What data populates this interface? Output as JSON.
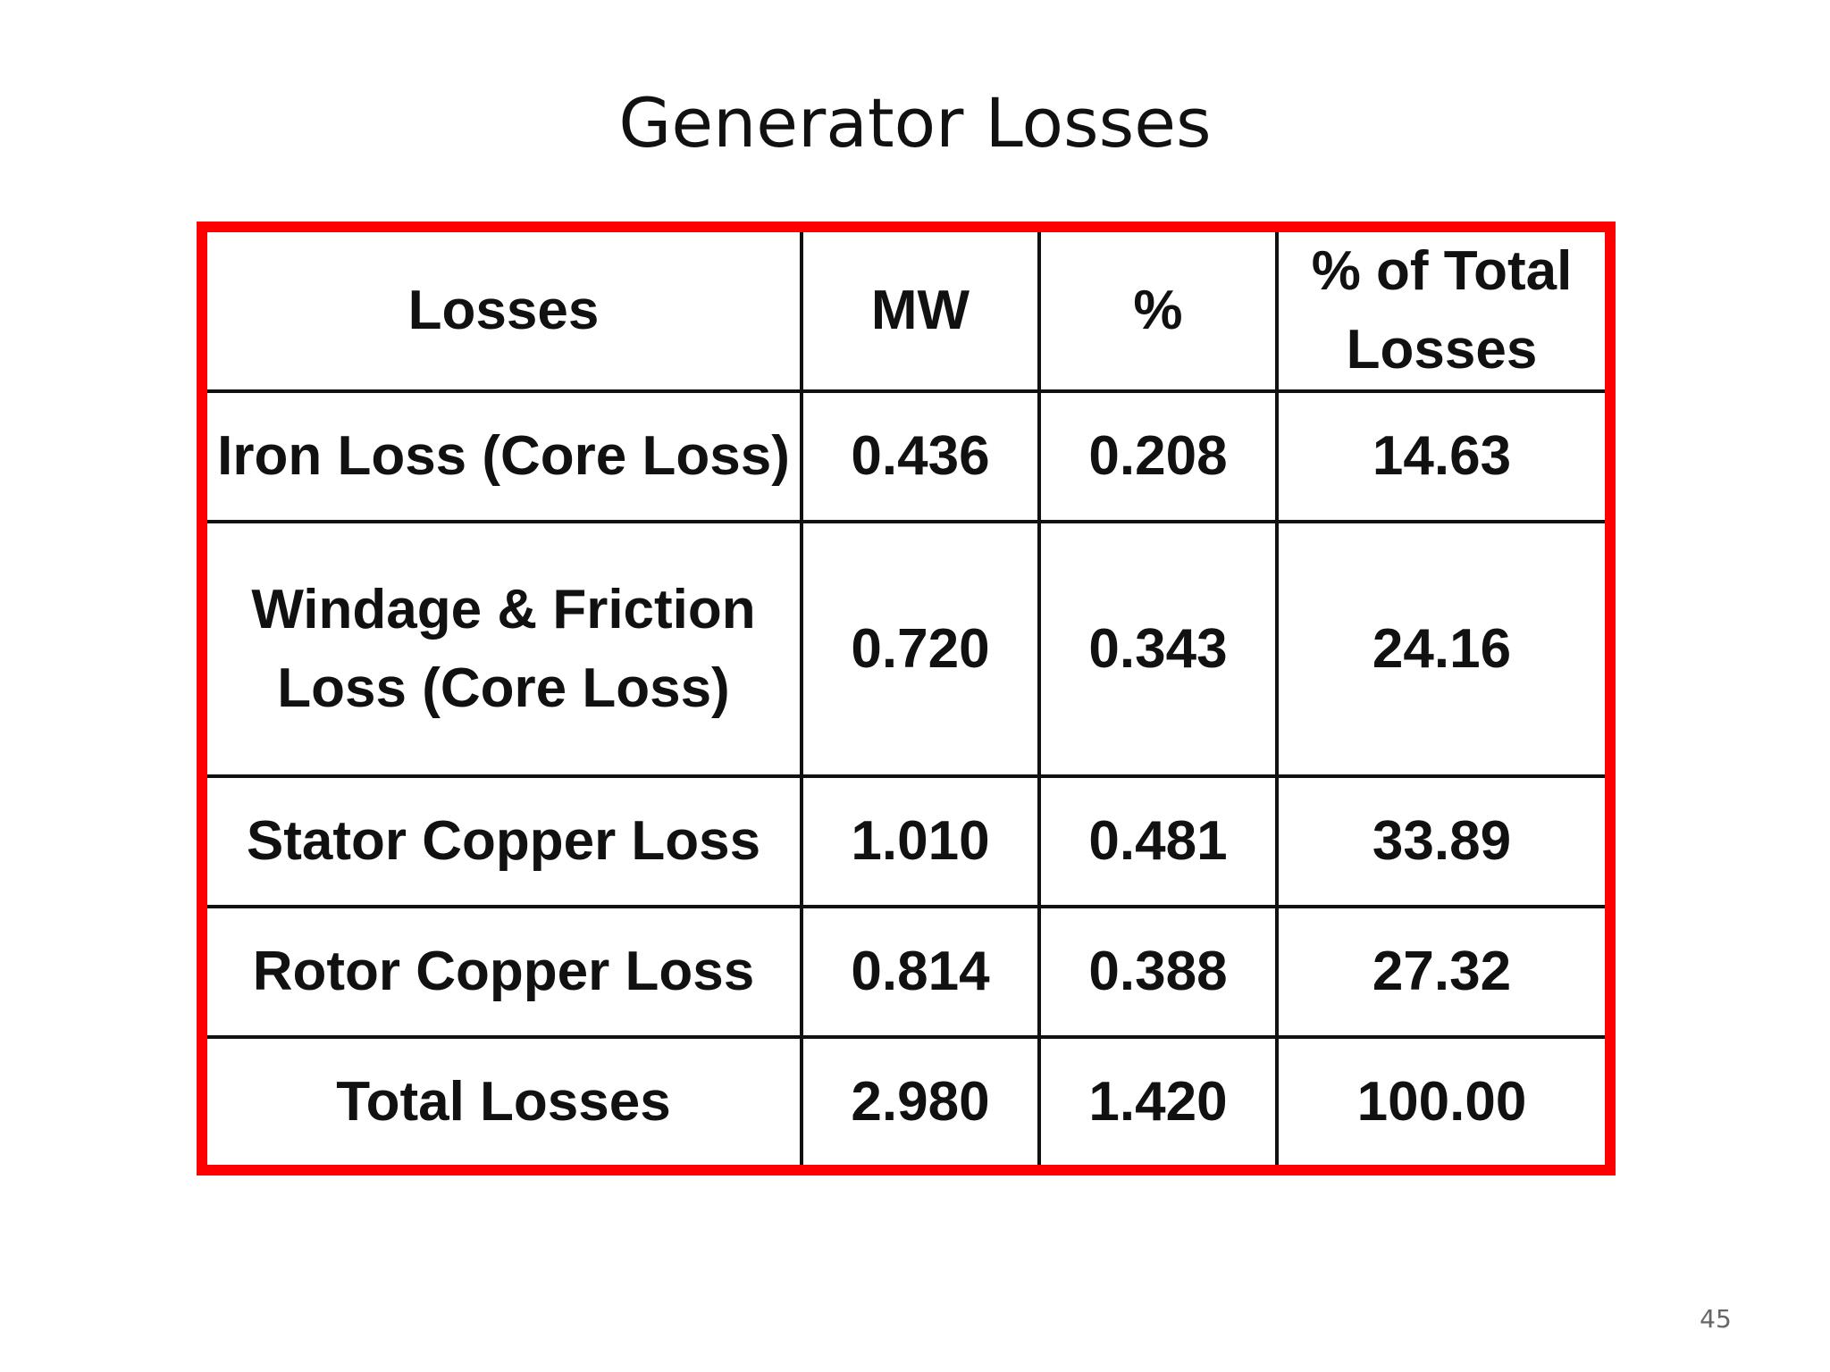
{
  "slide": {
    "title": "Generator Losses",
    "page_number": "45"
  },
  "colors": {
    "frame_border": "#ff0000",
    "grid_lines": "#111111",
    "text": "#111111"
  },
  "table": {
    "headers": {
      "losses": "Losses",
      "mw": "MW",
      "percent": "%",
      "percent_of_total": "% of Total Losses"
    },
    "rows": [
      {
        "loss": "Iron Loss (Core Loss)",
        "mw": "0.436",
        "percent": "0.208",
        "percent_of_total": "14.63"
      },
      {
        "loss": "Windage & Friction Loss (Core Loss)",
        "mw": "0.720",
        "percent": "0.343",
        "percent_of_total": "24.16"
      },
      {
        "loss": "Stator Copper Loss",
        "mw": "1.010",
        "percent": "0.481",
        "percent_of_total": "33.89"
      },
      {
        "loss": "Rotor Copper Loss",
        "mw": "0.814",
        "percent": "0.388",
        "percent_of_total": "27.32"
      },
      {
        "loss": "Total Losses",
        "mw": "2.980",
        "percent": "1.420",
        "percent_of_total": "100.00"
      }
    ]
  }
}
